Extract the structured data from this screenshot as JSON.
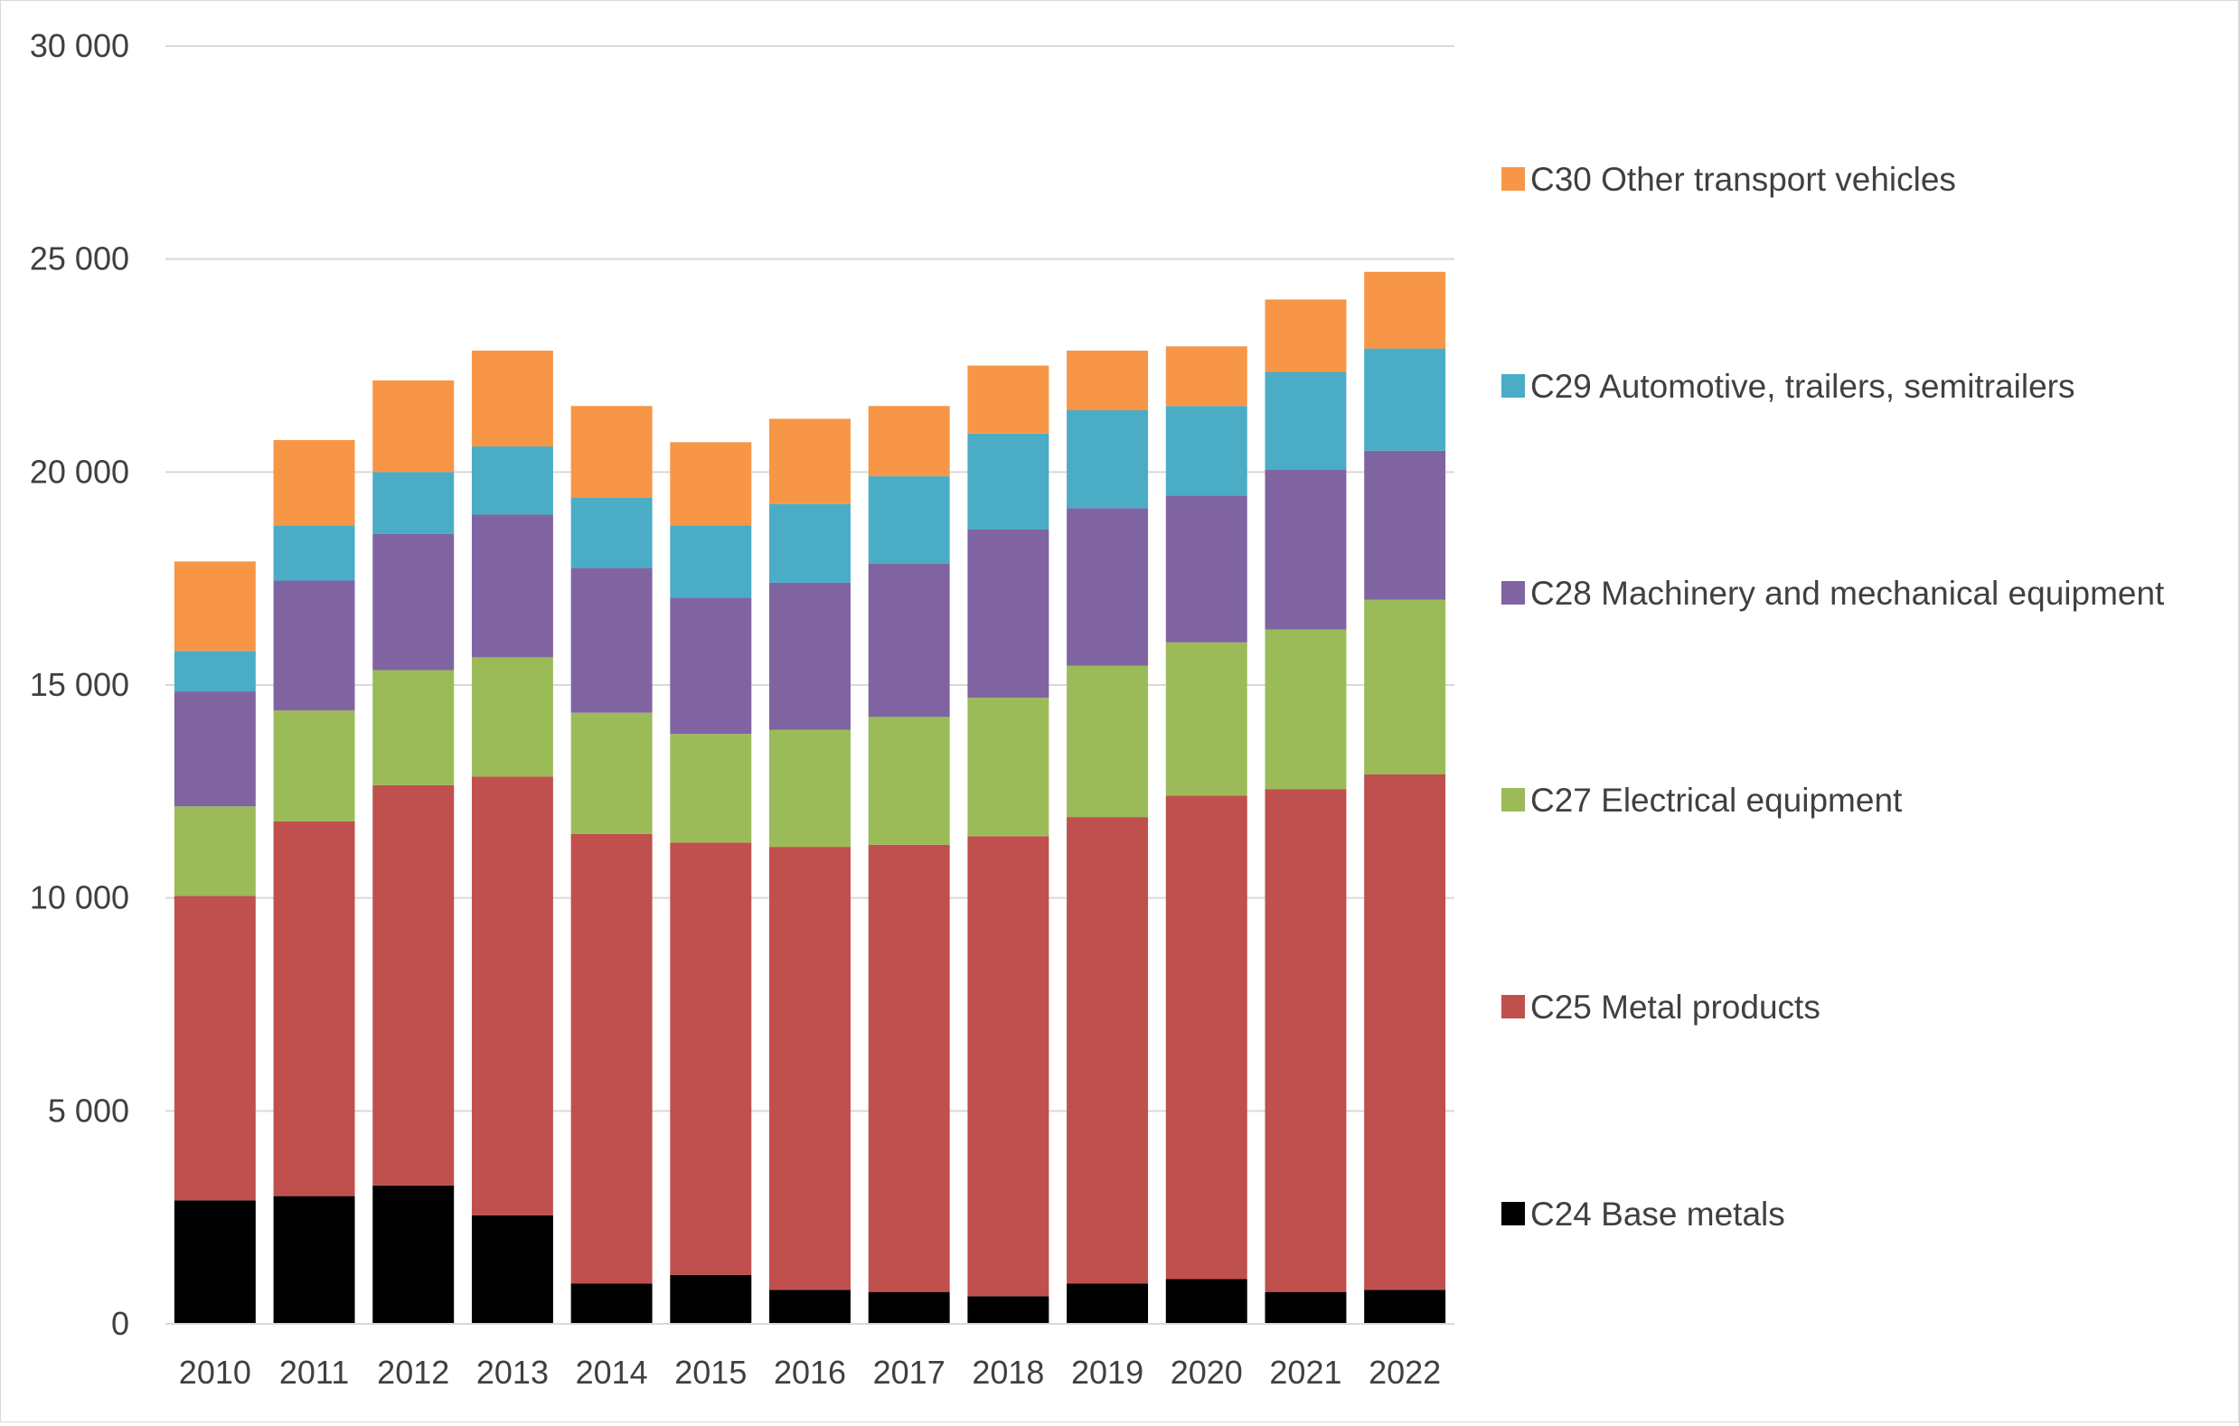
{
  "chart_data": {
    "type": "bar",
    "stacked": true,
    "categories": [
      "2010",
      "2011",
      "2012",
      "2013",
      "2014",
      "2015",
      "2016",
      "2017",
      "2018",
      "2019",
      "2020",
      "2021",
      "2022"
    ],
    "ylim": [
      0,
      30000
    ],
    "yticks": [
      0,
      5000,
      10000,
      15000,
      20000,
      25000,
      30000
    ],
    "ytick_labels": [
      "0",
      "5 000",
      "10 000",
      "15 000",
      "20 000",
      "25 000",
      "30 000"
    ],
    "grid": "horizontal",
    "legend_position": "right",
    "series": [
      {
        "name": "C24 Base metals",
        "color": "#000000",
        "values": [
          2900,
          3000,
          3250,
          2550,
          950,
          1150,
          800,
          750,
          650,
          950,
          1050,
          750,
          800
        ]
      },
      {
        "name": "C25 Metal products",
        "color": "#c0504d",
        "values": [
          7150,
          8800,
          9400,
          10300,
          10550,
          10150,
          10400,
          10500,
          10800,
          10950,
          11350,
          11800,
          12100
        ]
      },
      {
        "name": "C27 Electrical equipment",
        "color": "#9bbb59",
        "values": [
          2100,
          2600,
          2700,
          2800,
          2850,
          2550,
          2750,
          3000,
          3250,
          3550,
          3600,
          3750,
          4100
        ]
      },
      {
        "name": "C28 Machinery and mechanical equipment",
        "color": "#8064a2",
        "values": [
          2700,
          3050,
          3200,
          3350,
          3400,
          3200,
          3450,
          3600,
          3950,
          3700,
          3450,
          3750,
          3500
        ]
      },
      {
        "name": "C29 Automotive, trailers, semitrailers",
        "color": "#4bacc6",
        "values": [
          950,
          1300,
          1450,
          1600,
          1650,
          1700,
          1850,
          2050,
          2250,
          2300,
          2100,
          2300,
          2400
        ]
      },
      {
        "name": "C30 Other transport vehicles",
        "color": "#f79646",
        "values": [
          2100,
          2000,
          2150,
          2250,
          2150,
          1950,
          2000,
          1650,
          1600,
          1400,
          1400,
          1700,
          1800
        ]
      }
    ]
  }
}
